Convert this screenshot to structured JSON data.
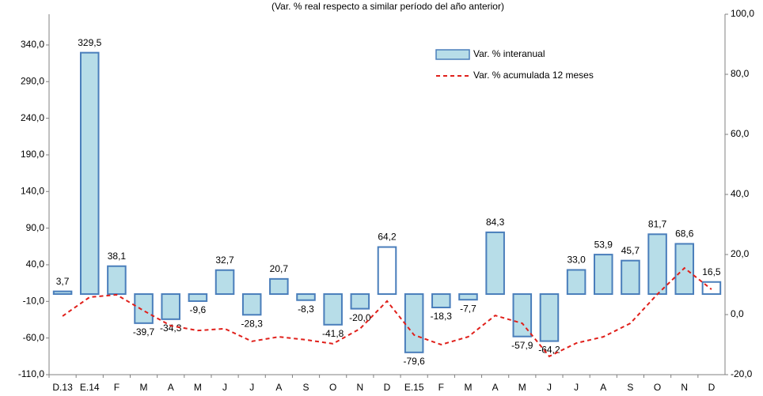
{
  "chart_data": {
    "type": "combo",
    "subtitle": "(Var. % real respecto a similar período del año anterior)",
    "categories": [
      "D.13",
      "E.14",
      "F",
      "M",
      "A",
      "M",
      "J",
      "J",
      "A",
      "S",
      "O",
      "N",
      "D",
      "E.15",
      "F",
      "M",
      "A",
      "M",
      "J",
      "J",
      "A",
      "S",
      "O",
      "N",
      "D"
    ],
    "series": [
      {
        "name": "Var. % interanual",
        "type": "bar",
        "color": "#b7dde8",
        "edge_color": "#4a7ebb",
        "values": [
          3.7,
          329.5,
          38.1,
          -39.7,
          -34.3,
          -9.6,
          32.7,
          -28.3,
          20.7,
          -8.3,
          -41.8,
          -20.0,
          64.2,
          -79.6,
          -18.3,
          -7.7,
          84.3,
          -57.9,
          -64.2,
          33.0,
          53.9,
          45.7,
          81.7,
          68.6,
          16.5
        ],
        "value_labels": [
          "3,7",
          "329,5",
          "38,1",
          "-39,7",
          "-34,3",
          "-9,6",
          "32,7",
          "-28,3",
          "20,7",
          "-8,3",
          "-41,8",
          "-20,0",
          "64,2",
          "-79,6",
          "-18,3",
          "-7,7",
          "84,3",
          "-57,9",
          "-64,2",
          "33,0",
          "53,9",
          "45,7",
          "81,7",
          "68,6",
          "16,5"
        ],
        "colors": [
          "#b7dde8",
          "#b7dde8",
          "#b7dde8",
          "#b7dde8",
          "#b7dde8",
          "#b7dde8",
          "#b7dde8",
          "#b7dde8",
          "#b7dde8",
          "#b7dde8",
          "#b7dde8",
          "#b7dde8",
          "#ffffff",
          "#b7dde8",
          "#b7dde8",
          "#b7dde8",
          "#b7dde8",
          "#b7dde8",
          "#b7dde8",
          "#b7dde8",
          "#b7dde8",
          "#b7dde8",
          "#b7dde8",
          "#b7dde8",
          "#ffffff"
        ]
      },
      {
        "name": "Var. % acumulada 12 meses",
        "type": "line",
        "axis": "y2",
        "color": "#e0201b",
        "values": [
          -0.5,
          5.8,
          6.6,
          1.3,
          -3.7,
          -5.3,
          -4.7,
          -8.9,
          -7.4,
          -8.4,
          -9.7,
          -4.7,
          4.5,
          -6.8,
          -10.0,
          -7.4,
          -0.3,
          -2.9,
          -13.9,
          -9.5,
          -7.4,
          -2.9,
          6.8,
          15.5,
          8.4
        ]
      }
    ],
    "ylim": [
      -110,
      382
    ],
    "yticks": [
      {
        "value": -110,
        "label": "-110,0"
      },
      {
        "value": -60,
        "label": "-60,0"
      },
      {
        "value": -10,
        "label": "-10,0"
      },
      {
        "value": 40,
        "label": "40,0"
      },
      {
        "value": 90,
        "label": "90,0"
      },
      {
        "value": 140,
        "label": "140,0"
      },
      {
        "value": 190,
        "label": "190,0"
      },
      {
        "value": 240,
        "label": "240,0"
      },
      {
        "value": 290,
        "label": "290,0"
      },
      {
        "value": 340,
        "label": "340,0"
      }
    ],
    "y2lim": [
      -20,
      100
    ],
    "y2ticks": [
      {
        "value": -20,
        "label": "-20,0"
      },
      {
        "value": 0,
        "label": "0,0"
      },
      {
        "value": 20,
        "label": "20,0"
      },
      {
        "value": 40,
        "label": "40,0"
      },
      {
        "value": 60,
        "label": "60,0"
      },
      {
        "value": 80,
        "label": "80,0"
      },
      {
        "value": 100,
        "label": "100,0"
      }
    ],
    "grid": false
  }
}
